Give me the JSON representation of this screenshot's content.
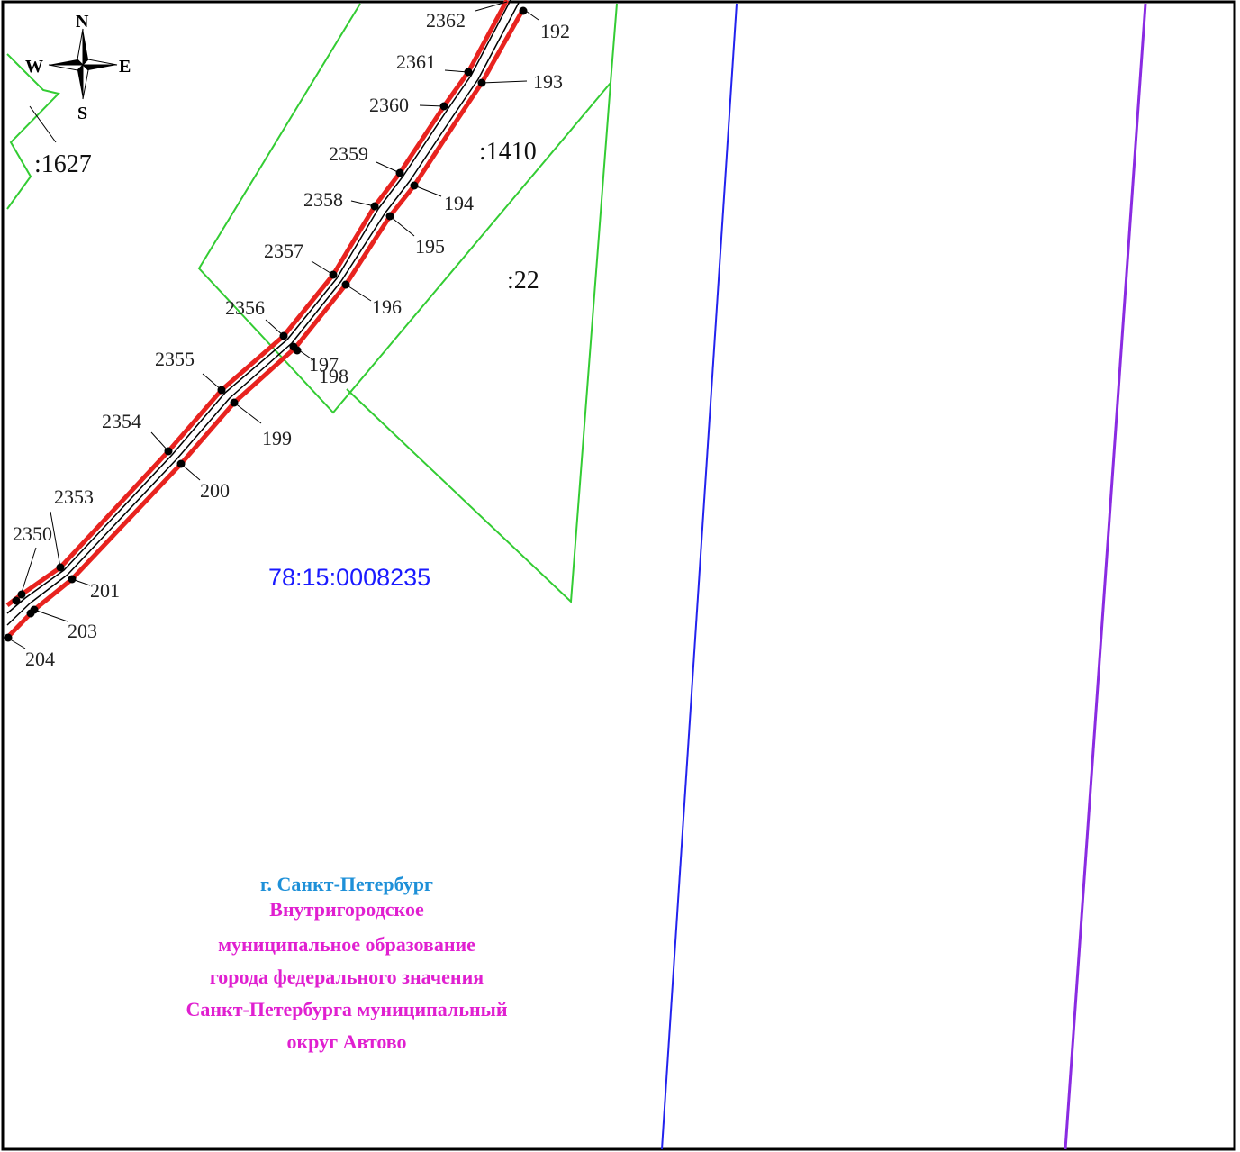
{
  "colors": {
    "frame": "#000000",
    "route_edge": "#e8231f",
    "route_center": "#000000",
    "parcel_boundary": "#33cc33",
    "quarter_label": "#1a1aff",
    "blue_line": "#2222ee",
    "purple_line": "#8a2be2",
    "city_label": "#1e90d8",
    "municipality_label": "#e020d0"
  },
  "compass": {
    "north": "N",
    "south": "S",
    "east": "E",
    "west": "W",
    "icon": "compass-rose-icon"
  },
  "parcels": [
    {
      "id": "parcel-1627",
      "label": ":1627"
    },
    {
      "id": "parcel-1410",
      "label": ":1410"
    },
    {
      "id": "parcel-22",
      "label": ":22"
    }
  ],
  "quarter_number": "78:15:0008235",
  "points_left": [
    "2362",
    "2361",
    "2360",
    "2359",
    "2358",
    "2357",
    "2356",
    "2355",
    "2354",
    "2353",
    "2350"
  ],
  "points_right": [
    "192",
    "193",
    "194",
    "195",
    "196",
    "197",
    "198",
    "199",
    "200",
    "201",
    "203",
    "204"
  ],
  "caption": {
    "city": "г. Санкт-Петербург",
    "municipality_lines": [
      "Внутригородское",
      "муниципальное образование",
      "города федерального значения",
      "Санкт-Петербурга муниципальный",
      "округ Автово"
    ]
  }
}
